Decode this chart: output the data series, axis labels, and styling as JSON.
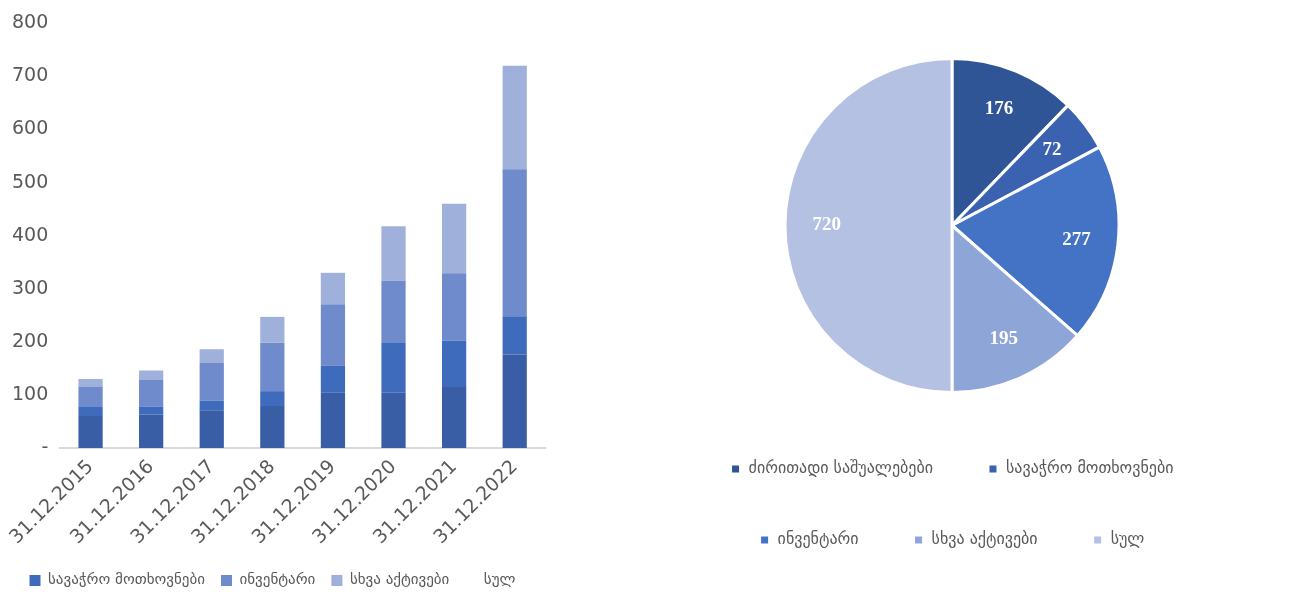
{
  "chart_data": [
    {
      "type": "bar",
      "stacked": true,
      "categories": [
        "31.12.2015",
        "31.12.2016",
        "31.12.2017",
        "31.12.2018",
        "31.12.2019",
        "31.12.2020",
        "31.12.2021",
        "31.12.2022"
      ],
      "series": [
        {
          "color": "#3a5ea6",
          "values": [
            60,
            63,
            71,
            79,
            104,
            104,
            115,
            176
          ]
        },
        {
          "name": "სავაჭრო მოთხოვნები",
          "color": "#3f6bbd",
          "values": [
            17,
            15,
            18,
            28,
            51,
            94,
            87,
            72
          ]
        },
        {
          "name": "ინვენტარი",
          "color": "#6f8bcc",
          "values": [
            39,
            51,
            71,
            91,
            116,
            117,
            127,
            277
          ]
        },
        {
          "name": "სხვა აქტივები",
          "color": "#9fb0da",
          "values": [
            14,
            17,
            26,
            49,
            59,
            103,
            131,
            195
          ]
        },
        {
          "name": "სულ",
          "values": [
            null,
            null,
            null,
            null,
            null,
            null,
            null,
            null
          ]
        }
      ],
      "ylim": [
        0,
        800
      ],
      "yticks": [
        {
          "value": 0,
          "label": "-"
        },
        100,
        200,
        300,
        400,
        500,
        600,
        700,
        800
      ],
      "grid": false,
      "legend": "bottom"
    },
    {
      "type": "pie",
      "categories": [
        "ძირითადი საშუალებები",
        "სავაჭრო მოთხოვნები",
        "ინვენტარი",
        "სხვა აქტივები",
        "სულ"
      ],
      "values": [
        176,
        72,
        277,
        195,
        720
      ],
      "colors": [
        "#2f5597",
        "#3a62b0",
        "#4472c4",
        "#8ea5d8",
        "#b4c1e2"
      ],
      "data_labels": true,
      "legend": "bottom"
    }
  ]
}
